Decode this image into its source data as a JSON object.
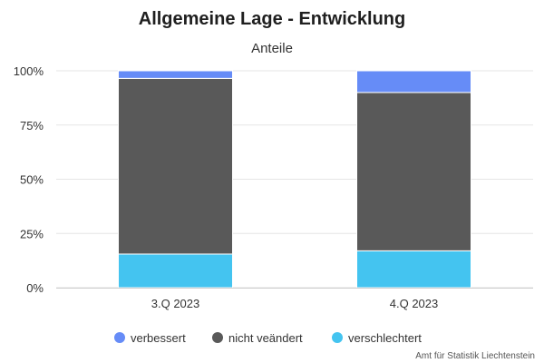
{
  "chart_data": {
    "type": "bar",
    "stacked": true,
    "title": "Allgemeine Lage - Entwicklung",
    "subtitle": "Anteile",
    "categories": [
      "3.Q 2023",
      "4.Q 2023"
    ],
    "series": [
      {
        "name": "verschlechtert",
        "values": [
          15.5,
          17
        ],
        "color": "#44C4F0"
      },
      {
        "name": "nicht veändert",
        "values": [
          81,
          73
        ],
        "color": "#595959"
      },
      {
        "name": "verbessert",
        "values": [
          3.5,
          10
        ],
        "color": "#668CF7"
      }
    ],
    "yticks": [
      "0%",
      "25%",
      "50%",
      "75%",
      "100%"
    ],
    "ylim": [
      0,
      100
    ],
    "grid": true,
    "legend_position": "bottom"
  },
  "credit": "Amt für Statistik Liechtenstein"
}
